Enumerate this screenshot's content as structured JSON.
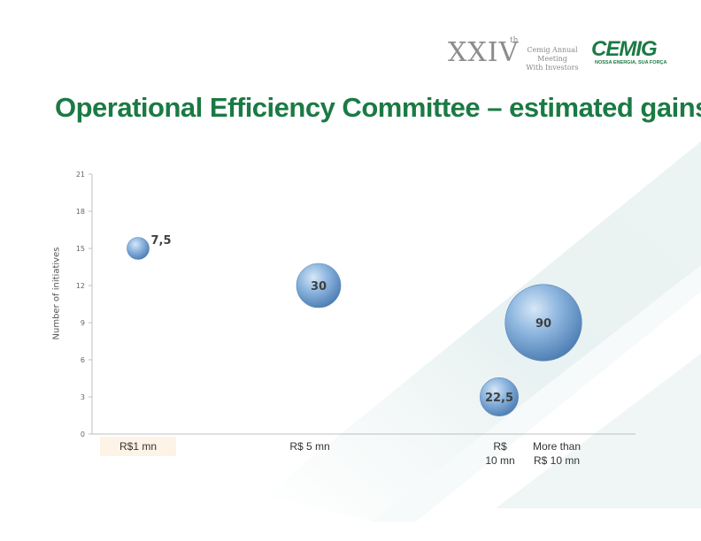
{
  "header": {
    "roman_numeral": "XXIV",
    "ordinal_suffix": "th",
    "meeting_line1": "Cemig Annual Meeting",
    "meeting_line2": "With Investors",
    "logo_text": "CEMIG",
    "logo_tagline": "NOSSA ENERGIA, SUA FORÇA"
  },
  "title": "Operational Efficiency Committee – estimated gains",
  "colors": {
    "title_green": "#1b7a44",
    "bubble_blue": "#6f9fd0"
  },
  "chart_data": {
    "type": "scatter",
    "ylabel": "Number of initiatives",
    "ylim": [
      0,
      21
    ],
    "yticks": [
      "0",
      "3",
      "6",
      "9",
      "12",
      "15",
      "18",
      "21"
    ],
    "x_categories": [
      {
        "lines": [
          "R$1 mn"
        ]
      },
      {
        "lines": [
          "R$ 5 mn"
        ]
      },
      {
        "lines": [
          "R$",
          "10 mn"
        ]
      },
      {
        "lines": [
          "More than",
          "R$ 10 mn"
        ]
      }
    ],
    "points": [
      {
        "x": 0,
        "y": 15,
        "size": 7.5,
        "label": "7,5"
      },
      {
        "x": 1,
        "y": 12,
        "size": 30,
        "label": "30"
      },
      {
        "x": 2,
        "y": 3,
        "size": 22.5,
        "label": "22,5"
      },
      {
        "x": 3,
        "y": 9,
        "size": 90,
        "label": "90"
      }
    ],
    "grid": false,
    "legend": "none"
  }
}
